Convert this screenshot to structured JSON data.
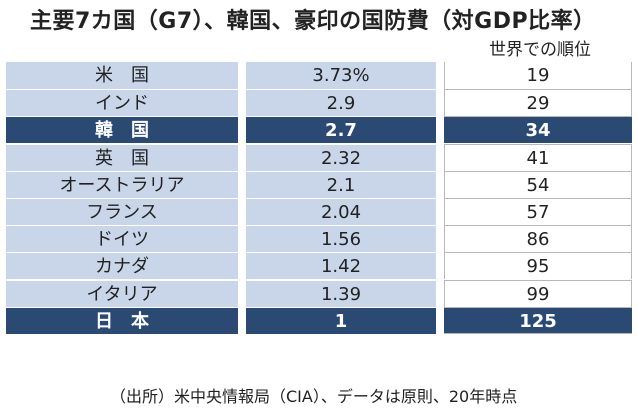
{
  "chart_data": {
    "type": "table",
    "title": "主要7カ国（G7）、韓国、豪印の国防費（対GDP比率）",
    "rank_header": "世界での順位",
    "rows": [
      {
        "country": "米　国",
        "pct": "3.73%",
        "rank": "19",
        "highlight": false
      },
      {
        "country": "インド",
        "pct": "2.9",
        "rank": "29",
        "highlight": false
      },
      {
        "country": "韓　国",
        "pct": "2.7",
        "rank": "34",
        "highlight": true
      },
      {
        "country": "英　国",
        "pct": "2.32",
        "rank": "41",
        "highlight": false
      },
      {
        "country": "オーストラリア",
        "pct": "2.1",
        "rank": "54",
        "highlight": false
      },
      {
        "country": "フランス",
        "pct": "2.04",
        "rank": "57",
        "highlight": false
      },
      {
        "country": "ドイツ",
        "pct": "1.56",
        "rank": "86",
        "highlight": false
      },
      {
        "country": "カナダ",
        "pct": "1.42",
        "rank": "95",
        "highlight": false
      },
      {
        "country": "イタリア",
        "pct": "1.39",
        "rank": "99",
        "highlight": false
      },
      {
        "country": "日　本",
        "pct": "1",
        "rank": "125",
        "highlight": true
      }
    ],
    "source_note": "（出所）米中央情報局（CIA）、データは原則、20年時点"
  },
  "colors": {
    "row_fill": "#c9d6ea",
    "highlight_fill": "#2a4a74",
    "highlight_text": "#ffffff"
  }
}
